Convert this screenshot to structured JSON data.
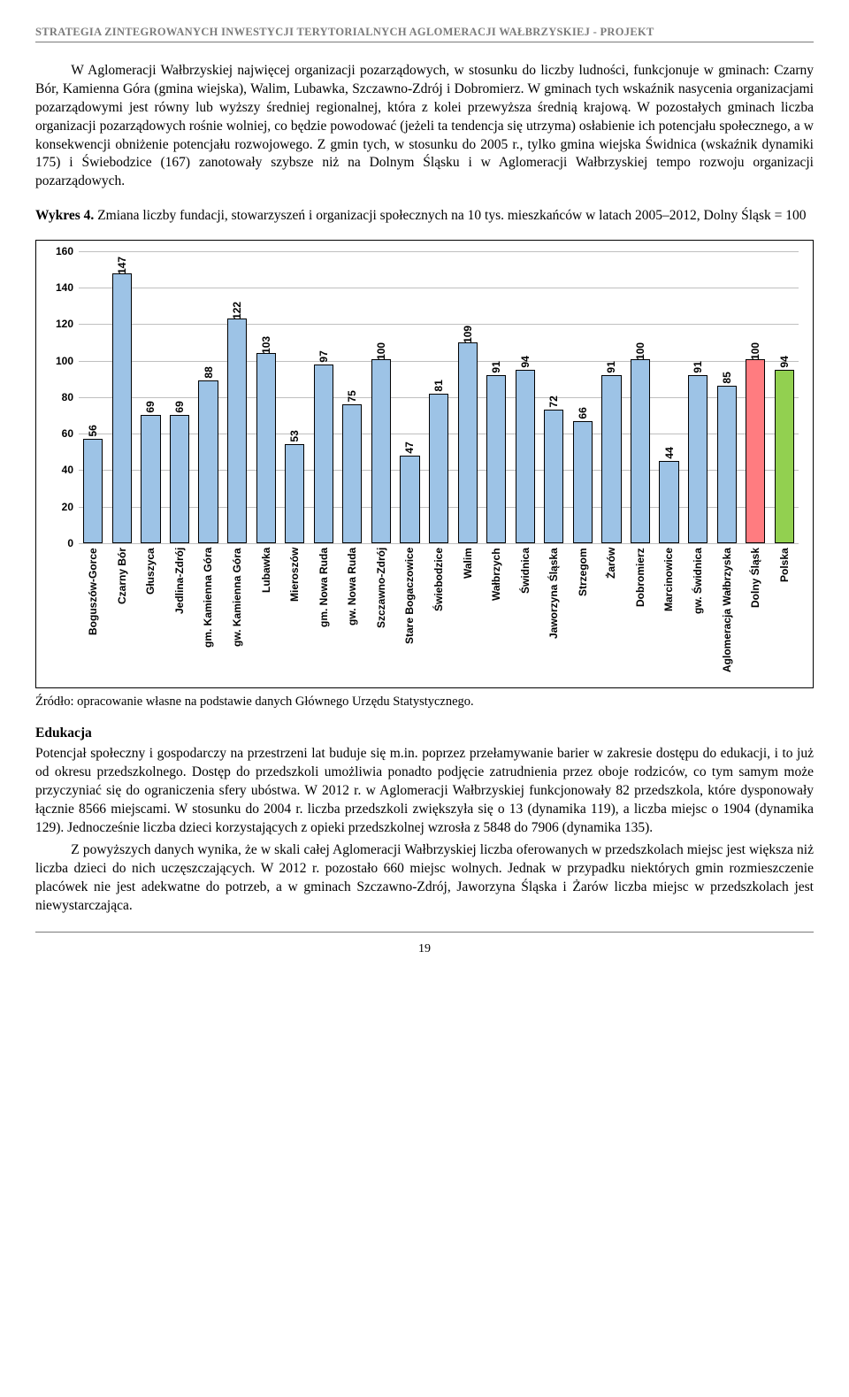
{
  "header": "STRATEGIA ZINTEGROWANYCH INWESTYCJI TERYTORIALNYCH AGLOMERACJI WAŁBRZYSKIEJ - PROJEKT",
  "para1": "W Aglomeracji Wałbrzyskiej najwięcej organizacji pozarządowych, w stosunku do liczby ludności, funkcjonuje w gminach: Czarny Bór, Kamienna Góra (gmina wiejska), Walim, Lubawka, Szczawno-Zdrój i Dobromierz. W gminach tych wskaźnik nasycenia organizacjami pozarządowymi jest równy lub wyższy średniej regionalnej, która z kolei przewyższa średnią krajową. W pozostałych gminach liczba organizacji pozarządowych rośnie wolniej, co będzie powodować (jeżeli ta tendencja się utrzyma) osłabienie ich potencjału społecznego, a w konsekwencji obniżenie potencjału rozwojowego. Z gmin tych, w stosunku do 2005 r., tylko gmina wiejska Świdnica (wskaźnik dynamiki 175) i Świebodzice (167) zanotowały szybsze niż na Dolnym Śląsku i w Aglomeracji Wałbrzyskiej tempo rozwoju organizacji pozarządowych.",
  "wyk_label": "Wykres 4.",
  "wyk_text": " Zmiana liczby fundacji, stowarzyszeń i organizacji społecznych na 10 tys. mieszkańców w latach 2005–2012, Dolny Śląsk = 100",
  "chart": {
    "type": "bar",
    "ylim": [
      0,
      160
    ],
    "ytick_step": 20,
    "yticks": [
      0,
      20,
      40,
      60,
      80,
      100,
      120,
      140,
      160
    ],
    "grid_color": "#bfbfbf",
    "default_bar_color": "#9dc3e6",
    "bar_border": "#000000",
    "label_fontsize": 12,
    "label_fontweight": "bold",
    "categories": [
      "Boguszów-Gorce",
      "Czarny Bór",
      "Głuszyca",
      "Jedlina-Zdrój",
      "gm. Kamienna Góra",
      "gw. Kamienna Góra",
      "Lubawka",
      "Mieroszów",
      "gm. Nowa Ruda",
      "gw. Nowa Ruda",
      "Szczawno-Zdrój",
      "Stare Bogaczowice",
      "Świebodzice",
      "Walim",
      "Wałbrzych",
      "Świdnica",
      "Jaworzyna Śląska",
      "Strzegom",
      "Żarów",
      "Dobromierz",
      "Marcinowice",
      "gw. Świdnica",
      "Aglomeracja Wałbrzyska",
      "Dolny Śląsk",
      "Polska"
    ],
    "values": [
      56,
      147,
      69,
      69,
      88,
      122,
      103,
      53,
      97,
      75,
      100,
      47,
      81,
      109,
      91,
      94,
      72,
      66,
      91,
      100,
      44,
      91,
      85,
      100,
      94
    ],
    "bar_colors": [
      "#9dc3e6",
      "#9dc3e6",
      "#9dc3e6",
      "#9dc3e6",
      "#9dc3e6",
      "#9dc3e6",
      "#9dc3e6",
      "#9dc3e6",
      "#9dc3e6",
      "#9dc3e6",
      "#9dc3e6",
      "#9dc3e6",
      "#9dc3e6",
      "#9dc3e6",
      "#9dc3e6",
      "#9dc3e6",
      "#9dc3e6",
      "#9dc3e6",
      "#9dc3e6",
      "#9dc3e6",
      "#9dc3e6",
      "#9dc3e6",
      "#9dc3e6",
      "#ff7c80",
      "#92d050"
    ]
  },
  "source": "Źródło: opracowanie własne na podstawie danych Głównego Urzędu Statystycznego.",
  "section_h": "Edukacja",
  "para2": "Potencjał społeczny i gospodarczy na przestrzeni lat buduje się m.in. poprzez przełamywanie barier w zakresie dostępu do edukacji, i to już od okresu przedszkolnego. Dostęp do przedszkoli umożliwia ponadto podjęcie zatrudnienia przez oboje rodziców, co tym samym może przyczyniać się do ograniczenia sfery ubóstwa. W 2012 r. w Aglomeracji Wałbrzyskiej funkcjonowały 82 przedszkola, które dysponowały łącznie 8566 miejscami. W stosunku do 2004 r. liczba przedszkoli zwiększyła się o 13 (dynamika 119), a liczba miejsc o 1904 (dynamika 129). Jednocześnie liczba dzieci korzystających z opieki przedszkolnej wzrosła z 5848 do 7906 (dynamika 135).",
  "para3": "Z powyższych danych wynika, że w skali całej Aglomeracji Wałbrzyskiej liczba oferowanych w przedszkolach miejsc jest większa niż liczba dzieci do nich uczęszczających. W 2012 r. pozostało 660 miejsc wolnych. Jednak w przypadku niektórych gmin rozmieszczenie placówek nie jest adekwatne do potrzeb, a w gminach Szczawno-Zdrój, Jaworzyna Śląska i Żarów liczba miejsc w przedszkolach jest niewystarczająca.",
  "page_number": "19"
}
